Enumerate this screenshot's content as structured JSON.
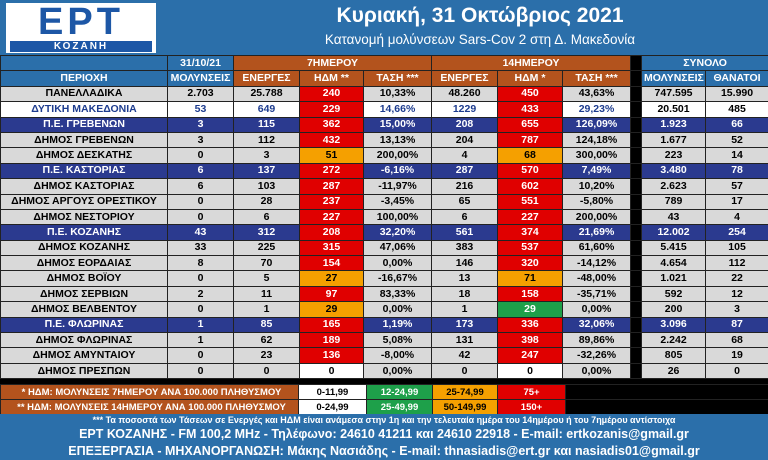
{
  "header": {
    "logo_text": "ΕΡΤ",
    "logo_sub": "ΚΟΖΑΝΗ",
    "date_title": "Κυριακή, 31 Οκτώβριος 2021",
    "subtitle": "Κατανομή μολύνσεων Sars-Cov 2 στη Δ. Μακεδονία"
  },
  "table": {
    "group_headers": {
      "date": "31/10/21",
      "week": "7ΗΜΕΡΟΥ",
      "fortnight": "14ΗΜΕΡΟΥ",
      "total": "ΣΥΝΟΛΟ"
    },
    "columns": [
      "ΠΕΡΙΟΧΗ",
      "ΜΟΛΥΝΣΕΙΣ",
      "ΕΝΕΡΓΕΣ",
      "ΗΔΜ **",
      "ΤΑΣΗ ***",
      "ΕΝΕΡΓΕΣ",
      "ΗΔΜ *",
      "ΤΑΣΗ ***",
      "ΜΟΛΥΝΣΕΙΣ",
      "ΘΑΝΑΤΟΙ"
    ],
    "rows": [
      {
        "type": "nat",
        "cells": [
          "ΠΑΝΕΛΛΑΔΙΚΑ",
          "2.703",
          "25.788",
          "240",
          "10,33%",
          "48.260",
          "450",
          "43,63%",
          "747.595",
          "15.990"
        ],
        "colors": [
          "red",
          "red",
          "red",
          "red"
        ]
      },
      {
        "type": "dm",
        "cells": [
          "ΔΥΤΙΚΗ ΜΑΚΕΔΟΝΙΑ",
          "53",
          "649",
          "229",
          "14,66%",
          "1229",
          "433",
          "29,23%",
          "20.501",
          "485"
        ],
        "colors": [
          "red",
          "red",
          "red",
          "red"
        ]
      },
      {
        "type": "pe",
        "cells": [
          "Π.Ε. ΓΡΕΒΕΝΩΝ",
          "3",
          "115",
          "362",
          "15,00%",
          "208",
          "655",
          "126,09%",
          "1.923",
          "66"
        ],
        "colors": [
          "red",
          "red",
          "red",
          "red"
        ]
      },
      {
        "type": "mun",
        "cells": [
          "ΔΗΜΟΣ ΓΡΕΒΕΝΩΝ",
          "3",
          "112",
          "432",
          "13,13%",
          "204",
          "787",
          "124,18%",
          "1.677",
          "52"
        ],
        "colors": [
          "red",
          "red",
          "red",
          "red"
        ]
      },
      {
        "type": "mun",
        "cells": [
          "ΔΗΜΟΣ ΔΕΣΚΑΤΗΣ",
          "0",
          "3",
          "51",
          "200,00%",
          "4",
          "68",
          "300,00%",
          "223",
          "14"
        ],
        "colors": [
          "orange",
          "red",
          "orange",
          "red"
        ]
      },
      {
        "type": "pe",
        "cells": [
          "Π.Ε. ΚΑΣΤΟΡΙΑΣ",
          "6",
          "137",
          "272",
          "-6,16%",
          "287",
          "570",
          "7,49%",
          "3.480",
          "78"
        ],
        "colors": [
          "red",
          "teal",
          "red",
          "red"
        ]
      },
      {
        "type": "mun",
        "cells": [
          "ΔΗΜΟΣ ΚΑΣΤΟΡΙΑΣ",
          "6",
          "103",
          "287",
          "-11,97%",
          "216",
          "602",
          "10,20%",
          "2.623",
          "57"
        ],
        "colors": [
          "red",
          "teal",
          "red",
          "red"
        ]
      },
      {
        "type": "mun",
        "cells": [
          "ΔΗΜΟΣ ΑΡΓΟΥΣ ΟΡΕΣΤΙΚΟΥ",
          "0",
          "28",
          "237",
          "-3,45%",
          "65",
          "551",
          "-5,80%",
          "789",
          "17"
        ],
        "colors": [
          "red",
          "teal",
          "red",
          "teal"
        ]
      },
      {
        "type": "mun",
        "cells": [
          "ΔΗΜΟΣ ΝΕΣΤΟΡΙΟΥ",
          "0",
          "6",
          "227",
          "100,00%",
          "6",
          "227",
          "200,00%",
          "43",
          "4"
        ],
        "colors": [
          "red",
          "red",
          "red",
          "red"
        ]
      },
      {
        "type": "pe",
        "cells": [
          "Π.Ε. ΚΟΖΑΝΗΣ",
          "43",
          "312",
          "208",
          "32,20%",
          "561",
          "374",
          "21,69%",
          "12.002",
          "254"
        ],
        "colors": [
          "red",
          "red",
          "red",
          "red"
        ]
      },
      {
        "type": "mun",
        "cells": [
          "ΔΗΜΟΣ ΚΟΖΑΝΗΣ",
          "33",
          "225",
          "315",
          "47,06%",
          "383",
          "537",
          "61,60%",
          "5.415",
          "105"
        ],
        "colors": [
          "red",
          "red",
          "red",
          "red"
        ]
      },
      {
        "type": "mun",
        "cells": [
          "ΔΗΜΟΣ ΕΟΡΔΑΙΑΣ",
          "8",
          "70",
          "154",
          "0,00%",
          "146",
          "320",
          "-14,12%",
          "4.654",
          "112"
        ],
        "colors": [
          "red",
          "peach",
          "red",
          "teal"
        ]
      },
      {
        "type": "mun",
        "cells": [
          "ΔΗΜΟΣ ΒΟΪΟΥ",
          "0",
          "5",
          "27",
          "-16,67%",
          "13",
          "71",
          "-48,00%",
          "1.021",
          "22"
        ],
        "colors": [
          "orange",
          "teal",
          "orange",
          "teal"
        ]
      },
      {
        "type": "mun",
        "cells": [
          "ΔΗΜΟΣ ΣΕΡΒΙΩΝ",
          "2",
          "11",
          "97",
          "83,33%",
          "18",
          "158",
          "-35,71%",
          "592",
          "12"
        ],
        "colors": [
          "red",
          "red",
          "red",
          "teal"
        ]
      },
      {
        "type": "mun",
        "cells": [
          "ΔΗΜΟΣ ΒΕΛΒΕΝΤΟΥ",
          "0",
          "1",
          "29",
          "0,00%",
          "1",
          "29",
          "0,00%",
          "200",
          "3"
        ],
        "colors": [
          "orange",
          "peach",
          "green",
          "peach"
        ]
      },
      {
        "type": "pe",
        "cells": [
          "Π.Ε. ΦΛΩΡΙΝΑΣ",
          "1",
          "85",
          "165",
          "1,19%",
          "173",
          "336",
          "32,06%",
          "3.096",
          "87"
        ],
        "colors": [
          "red",
          "red",
          "red",
          "red"
        ]
      },
      {
        "type": "mun",
        "cells": [
          "ΔΗΜΟΣ ΦΛΩΡΙΝΑΣ",
          "1",
          "62",
          "189",
          "5,08%",
          "131",
          "398",
          "89,86%",
          "2.242",
          "68"
        ],
        "colors": [
          "red",
          "red",
          "red",
          "red"
        ]
      },
      {
        "type": "mun",
        "cells": [
          "ΔΗΜΟΣ ΑΜΥΝΤΑΙΟΥ",
          "0",
          "23",
          "136",
          "-8,00%",
          "42",
          "247",
          "-32,26%",
          "805",
          "19"
        ],
        "colors": [
          "red",
          "teal",
          "red",
          "teal"
        ]
      },
      {
        "type": "mun",
        "cells": [
          "ΔΗΜΟΣ ΠΡΕΣΠΩΝ",
          "0",
          "0",
          "0",
          "0,00%",
          "0",
          "0",
          "0,00%",
          "26",
          "0"
        ],
        "colors": [
          "white",
          "peach",
          "white",
          "peach"
        ]
      }
    ]
  },
  "legend": {
    "row1_label": "* ΗΔΜ: ΜΟΛΥΝΣΕΙΣ 7ΗΜΕΡΟΥ ΑΝΑ 100.000 ΠΛΗΘΥΣΜΟΥ",
    "row2_label": "** ΗΔΜ: ΜΟΛΥΝΣΕΙΣ 14ΗΜΕΡΟΥ ΑΝΑ 100.000 ΠΛΗΘΥΣΜΟΥ",
    "row1_ranges": [
      "0-11,99",
      "12-24,99",
      "25-74,99",
      "75+"
    ],
    "row2_ranges": [
      "0-24,99",
      "25-49,99",
      "50-149,99",
      "150+"
    ]
  },
  "note": "*** Τα ποσοστά των Τάσεων σε Ενεργές και ΗΔΜ είναι ανάμεσα στην 1η και την τελευταία ημέρα του 14ημέρου ή του 7ημέρου αντίστοιχα",
  "footer": {
    "line1": "ΕΡΤ ΚΟΖΑΝΗΣ - FM 100,2 MHz - Τηλέφωνο:  24610 41211 και 24610 22918  - E-mail: ertkozanis@gmail.gr",
    "line2": "ΕΠΕΞΕΡΓΑΣΙΑ  -  ΜΗΧΑΝΟΡΓΑΝΩΣΗ: Μάκης Νασιάδης  -  E-mail: thnasiadis@ert.gr και nasiadis01@gmail.gr"
  },
  "colors": {
    "header_blue": "#2b6faa",
    "header_brown": "#b3531d",
    "red": "#e00000",
    "orange": "#f5a000",
    "peach": "#fbc99c",
    "green": "#1ea04a",
    "teal": "#0c6b62"
  }
}
